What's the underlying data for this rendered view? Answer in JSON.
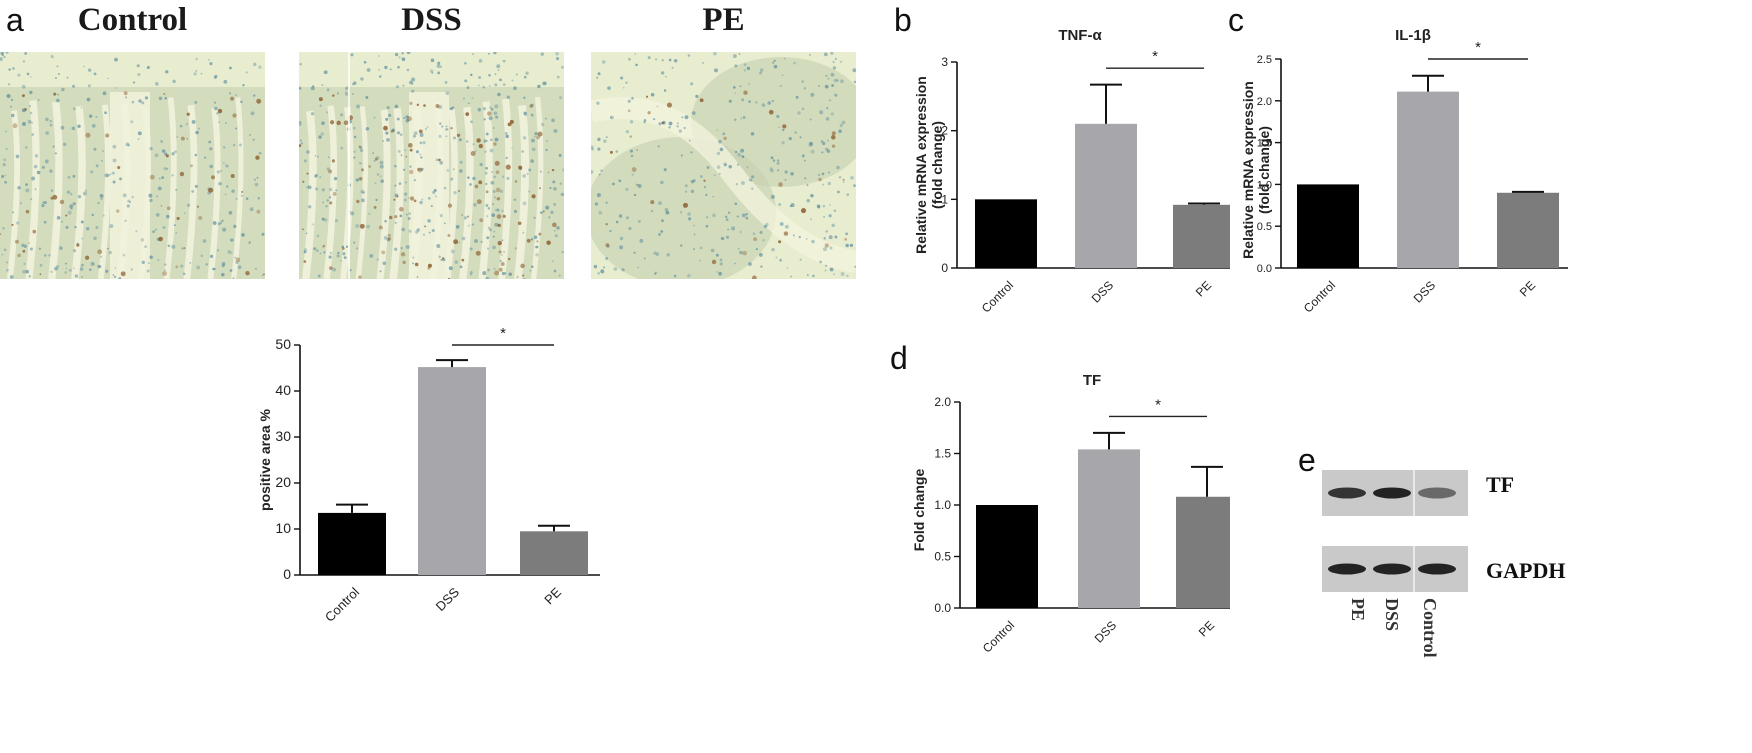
{
  "panel_labels": [
    "a",
    "b",
    "c",
    "d",
    "e"
  ],
  "histology": {
    "titles": [
      "Control",
      "DSS",
      "PE"
    ],
    "colors": {
      "background": "#e9edcf",
      "crypt": "#c7d3b2",
      "nuclei": "#5e8fa0",
      "stain": "#8a5a2b",
      "lumen": "#f1f2dc"
    }
  },
  "bar_colors": {
    "Control": "#000000",
    "DSS": "#a6a6ab",
    "PE": "#7c7c7c"
  },
  "significance_mark": "*",
  "chart_data": [
    {
      "type": "bar",
      "panel": "a",
      "title": "",
      "xlabel": "",
      "ylabel": "positive area %",
      "categories": [
        "Control",
        "DSS",
        "PE"
      ],
      "values": [
        13.5,
        45.2,
        9.5
      ],
      "errors": [
        1.8,
        1.5,
        1.2
      ],
      "ylim": [
        0,
        50
      ],
      "yticks": [
        "0",
        "10",
        "20",
        "30",
        "40",
        "50"
      ],
      "significance": {
        "between": [
          "DSS",
          "PE"
        ],
        "mark": "*"
      }
    },
    {
      "type": "bar",
      "panel": "b",
      "title": "TNF-α",
      "xlabel": "",
      "ylabel": "Relative mRNA expression (fold change)",
      "categories": [
        "Control",
        "DSS",
        "PE"
      ],
      "values": [
        1.0,
        2.1,
        0.92
      ],
      "errors": [
        0.0,
        0.57,
        0.02
      ],
      "ylim": [
        0,
        3
      ],
      "yticks": [
        "0",
        "1",
        "2",
        "3"
      ],
      "significance": {
        "between": [
          "DSS",
          "PE"
        ],
        "mark": "*"
      }
    },
    {
      "type": "bar",
      "panel": "c",
      "title": "IL-1β",
      "xlabel": "",
      "ylabel": "Relative mRNA expression (fold change)",
      "categories": [
        "Control",
        "DSS",
        "PE"
      ],
      "values": [
        1.0,
        2.11,
        0.9
      ],
      "errors": [
        0.0,
        0.19,
        0.01
      ],
      "ylim": [
        0,
        2.5
      ],
      "yticks": [
        "0.0",
        "0.5",
        "1.0",
        "1.5",
        "2.0",
        "2.5"
      ],
      "significance": {
        "between": [
          "DSS",
          "PE"
        ],
        "mark": "*"
      }
    },
    {
      "type": "bar",
      "panel": "d",
      "title": "TF",
      "xlabel": "",
      "ylabel": "Fold change",
      "categories": [
        "Control",
        "DSS",
        "PE"
      ],
      "values": [
        1.0,
        1.54,
        1.08
      ],
      "errors": [
        0.0,
        0.16,
        0.29
      ],
      "ylim": [
        0,
        2.0
      ],
      "yticks": [
        "0.0",
        "0.5",
        "1.0",
        "1.5",
        "2.0"
      ],
      "significance": {
        "between": [
          "DSS",
          "PE"
        ],
        "mark": "*"
      }
    }
  ],
  "western_blot": {
    "bands": [
      "TF",
      "GAPDH"
    ],
    "lanes": [
      "PE",
      "DSS",
      "Control"
    ],
    "band_intensity": {
      "TF": [
        0.85,
        0.95,
        0.55
      ],
      "GAPDH": [
        0.95,
        0.95,
        0.95
      ]
    }
  }
}
